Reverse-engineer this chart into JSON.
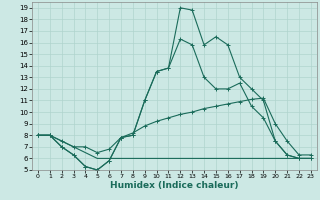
{
  "title": "",
  "xlabel": "Humidex (Indice chaleur)",
  "bg_color": "#cce8e4",
  "grid_color": "#b0d4ce",
  "line_color": "#1a6b5a",
  "xlim": [
    -0.5,
    23.5
  ],
  "ylim": [
    5,
    19.5
  ],
  "xticks": [
    0,
    1,
    2,
    3,
    4,
    5,
    6,
    7,
    8,
    9,
    10,
    11,
    12,
    13,
    14,
    15,
    16,
    17,
    18,
    19,
    20,
    21,
    22,
    23
  ],
  "yticks": [
    5,
    6,
    7,
    8,
    9,
    10,
    11,
    12,
    13,
    14,
    15,
    16,
    17,
    18,
    19
  ],
  "line1_x": [
    0,
    1,
    2,
    3,
    4,
    5,
    6,
    7,
    8,
    9,
    10,
    11,
    12,
    13,
    14,
    15,
    16,
    17,
    18,
    19,
    20,
    21,
    22,
    23
  ],
  "line1_y": [
    8,
    8,
    7,
    6.3,
    5.3,
    5,
    5.8,
    7.8,
    8,
    11,
    13.5,
    13.8,
    19,
    18.8,
    15.8,
    16.5,
    15.8,
    13,
    12,
    11,
    7.5,
    6.3,
    6,
    6
  ],
  "line2_x": [
    0,
    1,
    2,
    3,
    4,
    5,
    6,
    7,
    8,
    9,
    10,
    11,
    12,
    13,
    14,
    15,
    16,
    17,
    18,
    19,
    20,
    21,
    22,
    23
  ],
  "line2_y": [
    8,
    8,
    7,
    6.3,
    5.3,
    5,
    5.8,
    7.8,
    8,
    11,
    13.5,
    13.8,
    16.3,
    15.8,
    13,
    12,
    12,
    12.5,
    10.5,
    9.5,
    7.5,
    6.3,
    6,
    6
  ],
  "line3_x": [
    0,
    1,
    2,
    3,
    4,
    5,
    6,
    7,
    8,
    9,
    10,
    11,
    12,
    13,
    14,
    15,
    16,
    17,
    18,
    19,
    20,
    21,
    22,
    23
  ],
  "line3_y": [
    8,
    8,
    7.5,
    7,
    7,
    6.5,
    6.8,
    7.8,
    8.2,
    8.8,
    9.2,
    9.5,
    9.8,
    10.0,
    10.3,
    10.5,
    10.7,
    10.9,
    11.1,
    11.2,
    9,
    7.5,
    6.3,
    6.3
  ],
  "line4_x": [
    0,
    1,
    2,
    3,
    4,
    5,
    6,
    7,
    8,
    9,
    10,
    11,
    12,
    13,
    14,
    15,
    16,
    17,
    18,
    19,
    20,
    21,
    22,
    23
  ],
  "line4_y": [
    8,
    8,
    7.5,
    7,
    6.5,
    6,
    6,
    6,
    6,
    6,
    6,
    6,
    6,
    6,
    6,
    6,
    6,
    6,
    6,
    6,
    6,
    6,
    6,
    6
  ]
}
